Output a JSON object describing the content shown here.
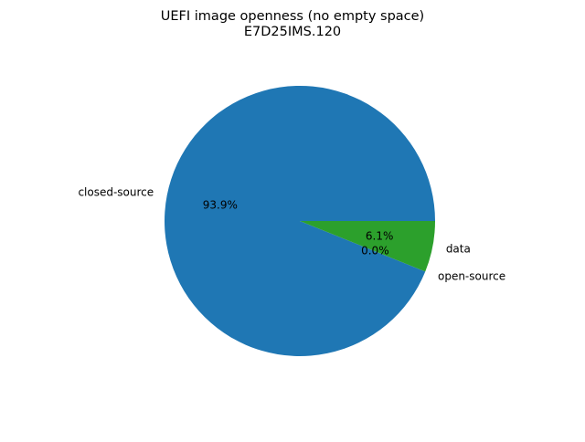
{
  "chart_data": {
    "type": "pie",
    "title": "UEFI image openness (no empty space)",
    "subtitle": "E7D25IMS.120",
    "slices": [
      {
        "label": "closed-source",
        "value": 93.9,
        "pct_label": "93.9%",
        "color": "#1f77b4"
      },
      {
        "label": "open-source",
        "value": 0.0,
        "pct_label": "0.0%",
        "color": "#ff7f0e"
      },
      {
        "label": "data",
        "value": 6.1,
        "pct_label": "6.1%",
        "color": "#2ca02c"
      }
    ],
    "start_angle_deg": 0,
    "direction": "counterclockwise",
    "legend": "none"
  }
}
